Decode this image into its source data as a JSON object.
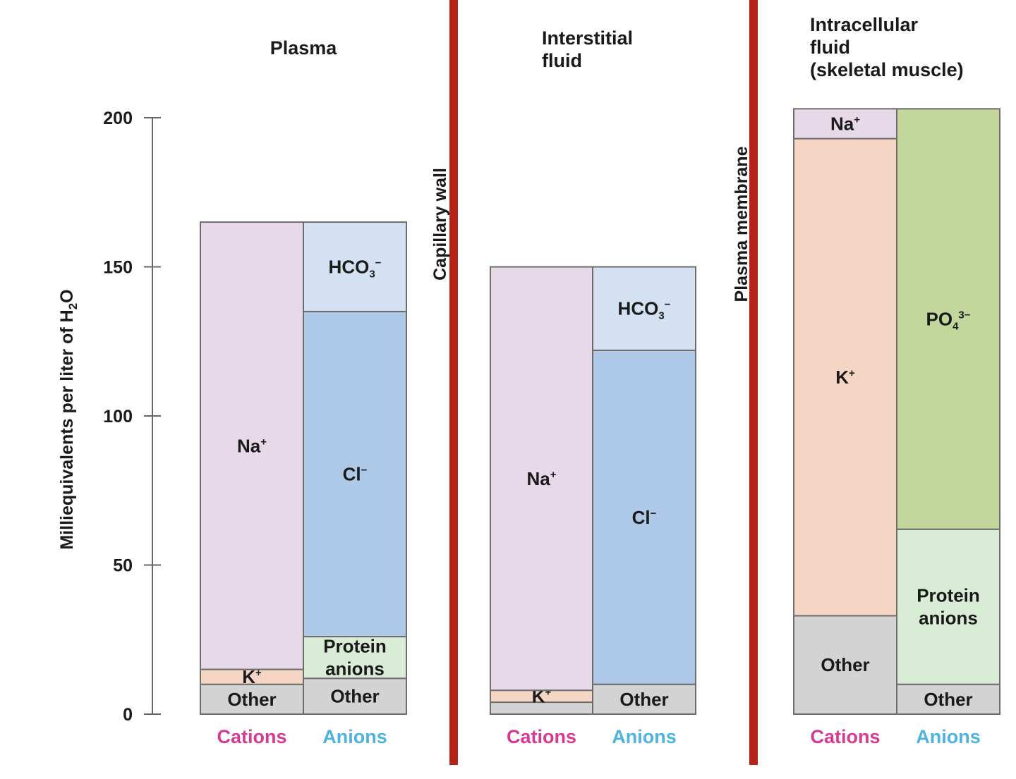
{
  "chart_data": {
    "type": "bar",
    "stacked": true,
    "ylabel": "Milliequivalents per liter of H",
    "ylabel_sub": "2",
    "ylabel_end": "O",
    "ylim": [
      0,
      200
    ],
    "yticks": [
      0,
      50,
      100,
      150,
      200
    ],
    "grid": false,
    "dividers": [
      "Capillary wall",
      "Plasma membrane"
    ],
    "colors": {
      "Na+": "#e8d9e8",
      "K+": "#f5d6c4",
      "Other": "#d3d3d3",
      "HCO3-": "#d3e1f2",
      "Cl-": "#aec8e8",
      "Protein anions": "#d9ecd6",
      "PO4 3-": "#c3d69b",
      "divider": "#b52318",
      "cations_text": "#d63b93",
      "anions_text": "#4fb3e0"
    },
    "panels": [
      {
        "title": [
          "Plasma"
        ],
        "bars": [
          {
            "label": "Cations",
            "segments": [
              {
                "name": "Other",
                "label": [
                  "Other"
                ],
                "value": 10
              },
              {
                "name": "K+",
                "label": [
                  "K"
                ],
                "sup": "+",
                "value": 5
              },
              {
                "name": "Na+",
                "label": [
                  "Na"
                ],
                "sup": "+",
                "value": 150
              }
            ]
          },
          {
            "label": "Anions",
            "segments": [
              {
                "name": "Other",
                "label": [
                  "Other"
                ],
                "value": 12
              },
              {
                "name": "Protein anions",
                "label": [
                  "Protein",
                  "anions"
                ],
                "value": 14
              },
              {
                "name": "Cl-",
                "label": [
                  "Cl"
                ],
                "sup": "−",
                "value": 109
              },
              {
                "name": "HCO3-",
                "label": [
                  "HCO"
                ],
                "sub": "3",
                "sup": "−",
                "value": 30
              }
            ]
          }
        ]
      },
      {
        "title": [
          "Interstitial",
          "fluid"
        ],
        "bars": [
          {
            "label": "Cations",
            "segments": [
              {
                "name": "Other",
                "label": [
                  ""
                ],
                "value": 4
              },
              {
                "name": "K+",
                "label": [
                  "K"
                ],
                "sup": "+",
                "value": 4
              },
              {
                "name": "Na+",
                "label": [
                  "Na"
                ],
                "sup": "+",
                "value": 142
              }
            ]
          },
          {
            "label": "Anions",
            "segments": [
              {
                "name": "Other",
                "label": [
                  "Other"
                ],
                "value": 10
              },
              {
                "name": "Cl-",
                "label": [
                  "Cl"
                ],
                "sup": "−",
                "value": 112
              },
              {
                "name": "HCO3-",
                "label": [
                  "HCO"
                ],
                "sub": "3",
                "sup": "−",
                "value": 28
              }
            ]
          }
        ]
      },
      {
        "title": [
          "Intracellular",
          "fluid",
          "(skeletal muscle)"
        ],
        "bars": [
          {
            "label": "Cations",
            "segments": [
              {
                "name": "Other",
                "label": [
                  "Other"
                ],
                "value": 33
              },
              {
                "name": "K+",
                "label": [
                  "K"
                ],
                "sup": "+",
                "value": 160
              },
              {
                "name": "Na+",
                "label": [
                  "Na"
                ],
                "sup": "+",
                "value": 10
              }
            ]
          },
          {
            "label": "Anions",
            "segments": [
              {
                "name": "Other",
                "label": [
                  "Other"
                ],
                "value": 10
              },
              {
                "name": "Protein anions",
                "label": [
                  "Protein",
                  "anions"
                ],
                "value": 52
              },
              {
                "name": "PO4 3-",
                "label": [
                  "PO"
                ],
                "sub": "4",
                "sup": "3−",
                "value": 141
              }
            ]
          }
        ]
      }
    ]
  }
}
